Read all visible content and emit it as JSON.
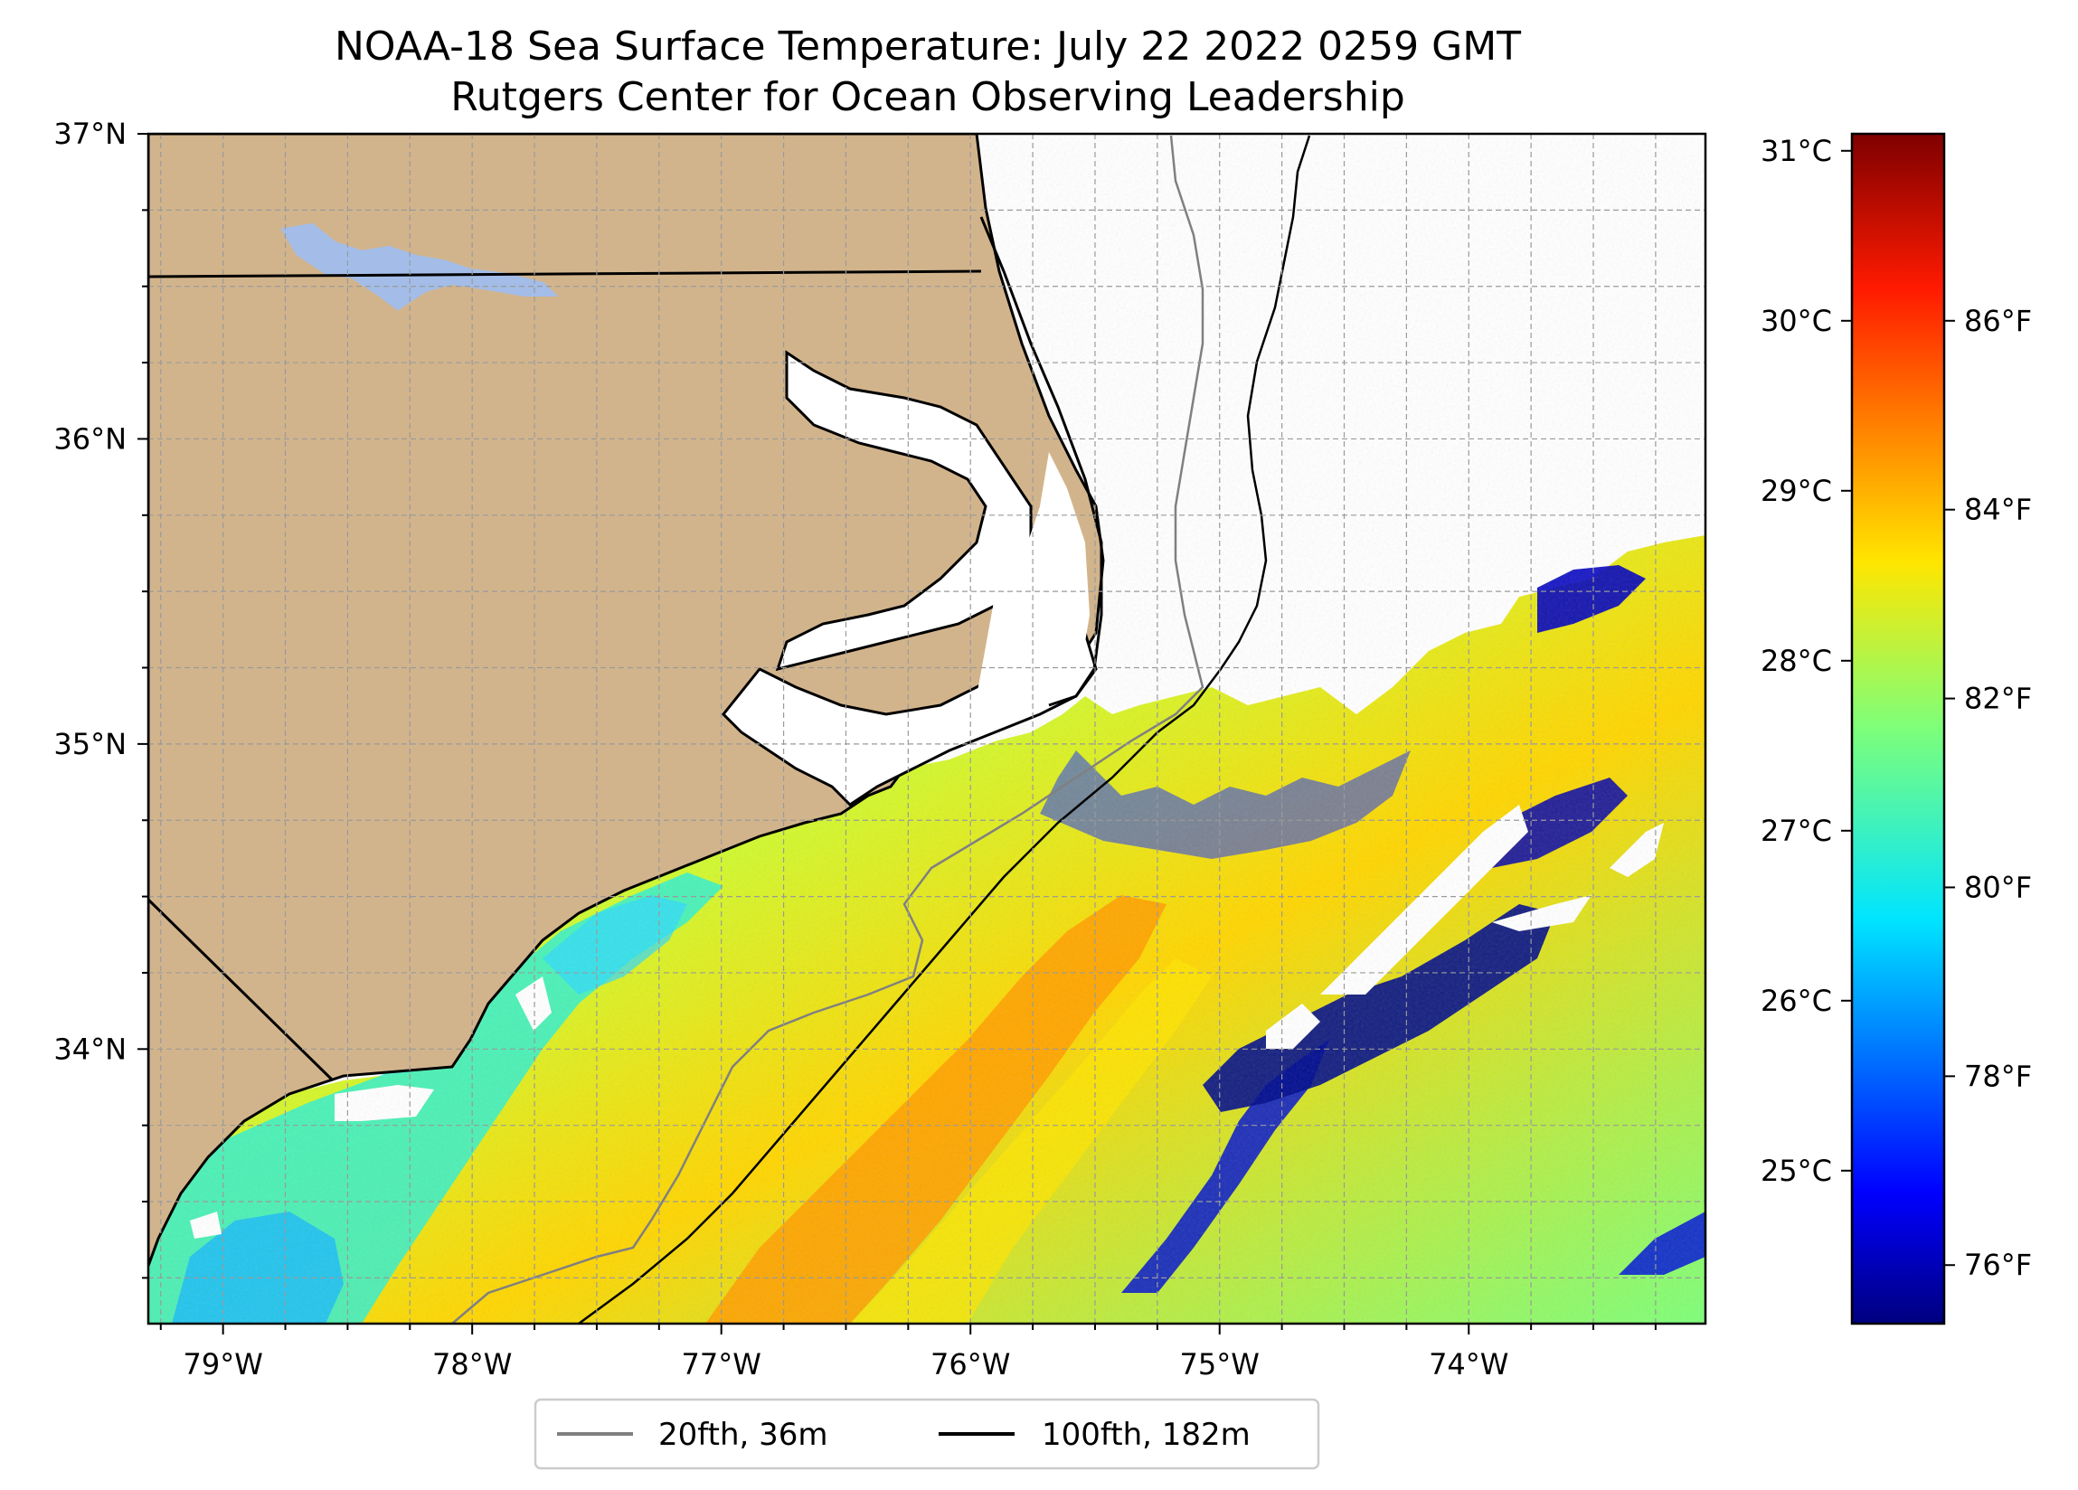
{
  "title_line1": "NOAA-18 Sea Surface Temperature: July 22 2022 0259 GMT",
  "title_line2": "Rutgers Center for Ocean Observing Leadership",
  "map": {
    "lon_range": [
      -79.3,
      -73.05
    ],
    "lat_range": [
      33.1,
      37.0
    ],
    "lon_labels": [
      "79°W",
      "78°W",
      "77°W",
      "76°W",
      "75°W",
      "74°W"
    ],
    "lat_labels": [
      "37°N",
      "36°N",
      "35°N",
      "34°N"
    ],
    "colors": {
      "land": "#d2b48c",
      "lake": "#a3bde8",
      "gridline": "#9a9a9a",
      "coast": "#000000",
      "isobath_20fth": "#808080",
      "isobath_100fth": "#000000"
    }
  },
  "colorbar": {
    "colormap": "jet",
    "celsius_range": [
      24.1,
      31.1
    ],
    "celsius_labels": [
      "31°C",
      "30°C",
      "29°C",
      "28°C",
      "27°C",
      "26°C",
      "25°C"
    ],
    "fahrenheit_labels": [
      "86°F",
      "84°F",
      "82°F",
      "80°F",
      "78°F",
      "76°F"
    ]
  },
  "legend": {
    "entries": [
      {
        "label": "20fth, 36m",
        "color": "#808080"
      },
      {
        "label": "100fth, 182m",
        "color": "#000000"
      }
    ]
  }
}
